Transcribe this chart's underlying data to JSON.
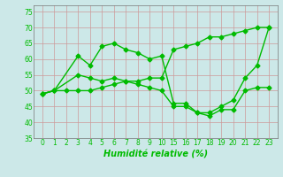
{
  "xlabel": "Humidité relative (%)",
  "bg_color": "#cce8e8",
  "grid_color": "#cc9999",
  "line_color": "#00bb00",
  "marker": "D",
  "markersize": 2.5,
  "linewidth": 1.0,
  "ylim": [
    35,
    77
  ],
  "yticks": [
    35,
    40,
    45,
    50,
    55,
    60,
    65,
    70,
    75
  ],
  "xlabels": [
    "0",
    "1",
    "2",
    "3",
    "4",
    "5",
    "6",
    "7",
    "8",
    "9",
    "10",
    "15",
    "16",
    "17",
    "18",
    "19",
    "20",
    "21",
    "22",
    "23"
  ],
  "xvals": [
    0,
    1,
    2,
    3,
    4,
    5,
    6,
    7,
    8,
    9,
    10,
    11,
    12,
    13,
    14,
    15,
    16,
    17,
    18,
    19
  ],
  "lines": [
    {
      "x": [
        0,
        1,
        2,
        3,
        4,
        5,
        6,
        7,
        8,
        9,
        10,
        11,
        12,
        13,
        14,
        15,
        16,
        17,
        18,
        19
      ],
      "y": [
        49,
        50,
        50,
        50,
        50,
        51,
        52,
        53,
        53,
        54,
        54,
        63,
        64,
        65,
        67,
        67,
        68,
        69,
        70,
        70
      ]
    },
    {
      "x": [
        0,
        1,
        3,
        4,
        5,
        6,
        7,
        8,
        9,
        10,
        11,
        12,
        13,
        14,
        15,
        16,
        17,
        18,
        19
      ],
      "y": [
        49,
        50,
        61,
        58,
        64,
        65,
        63,
        62,
        60,
        61,
        46,
        46,
        43,
        43,
        45,
        47,
        54,
        58,
        70
      ]
    },
    {
      "x": [
        0,
        1,
        3,
        4,
        5,
        6,
        7,
        8,
        9,
        10,
        11,
        12,
        13,
        14,
        15,
        16,
        17,
        18,
        19
      ],
      "y": [
        49,
        50,
        55,
        54,
        53,
        54,
        53,
        52,
        51,
        50,
        45,
        45,
        43,
        42,
        44,
        44,
        50,
        51,
        51
      ]
    }
  ]
}
